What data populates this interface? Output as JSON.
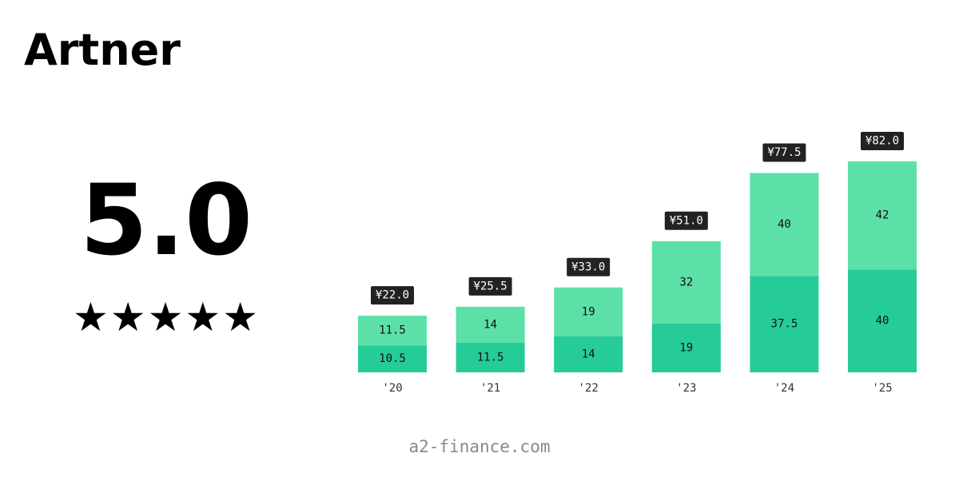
{
  "brand": {
    "name": "Artner"
  },
  "rating": {
    "value": "5.0",
    "stars": "★★★★★",
    "star_count": 5
  },
  "footer": {
    "website": "a2-finance.com"
  },
  "colors": {
    "series_bottom": "#26cc97",
    "series_top": "#5ce0a8",
    "total_label_bg": "#222222",
    "total_label_text": "#ffffff",
    "axis_text": "#333333"
  },
  "chart_data": {
    "type": "bar",
    "stacked": true,
    "categories": [
      "'20",
      "'21",
      "'22",
      "'23",
      "'24",
      "'25"
    ],
    "series": [
      {
        "values": [
          10.5,
          11.5,
          14,
          19,
          37.5,
          40
        ],
        "labels": [
          "10.5",
          "11.5",
          "14",
          "19",
          "37.5",
          "40"
        ]
      },
      {
        "values": [
          11.5,
          14,
          19,
          32,
          40,
          42
        ],
        "labels": [
          "11.5",
          "14",
          "19",
          "32",
          "40",
          "42"
        ]
      }
    ],
    "totals": [
      22.0,
      25.5,
      33.0,
      51.0,
      77.5,
      82.0
    ],
    "total_labels": [
      "¥22.0",
      "¥25.5",
      "¥33.0",
      "¥51.0",
      "¥77.5",
      "¥82.0"
    ],
    "ylim": [
      0,
      82
    ],
    "grid": false,
    "title": "",
    "xlabel": "",
    "ylabel": ""
  }
}
